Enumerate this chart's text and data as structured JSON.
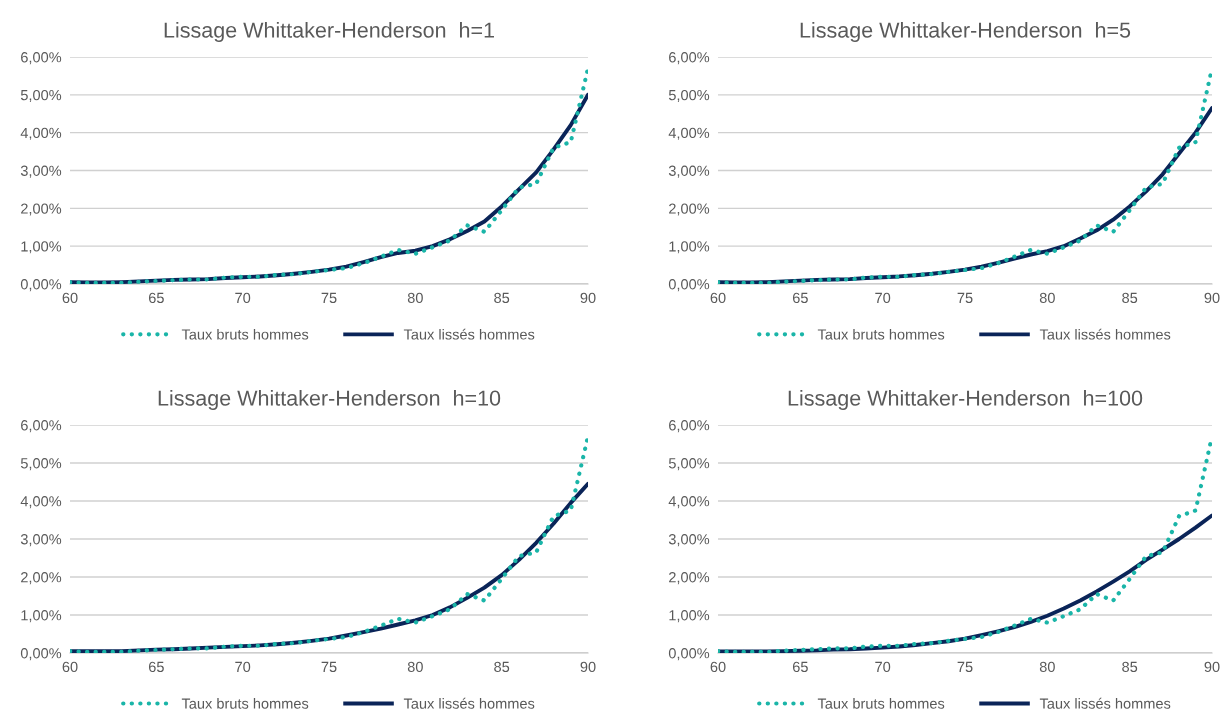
{
  "chart_data": [
    {
      "type": "line",
      "title": "Lissage Whittaker-Henderson  h=1",
      "x": [
        60,
        61,
        62,
        63,
        64,
        65,
        66,
        67,
        68,
        69,
        70,
        71,
        72,
        73,
        74,
        75,
        76,
        77,
        78,
        79,
        80,
        81,
        82,
        83,
        84,
        85,
        86,
        87,
        88,
        89,
        90
      ],
      "xlim": [
        60,
        90
      ],
      "xticks": [
        60,
        65,
        70,
        75,
        80,
        85,
        90
      ],
      "ylim": [
        0,
        6
      ],
      "yticks": [
        {
          "value": 0,
          "label": "0,00%"
        },
        {
          "value": 1,
          "label": "1,00%"
        },
        {
          "value": 2,
          "label": "2,00%"
        },
        {
          "value": 3,
          "label": "3,00%"
        },
        {
          "value": 4,
          "label": "4,00%"
        },
        {
          "value": 5,
          "label": "5,00%"
        },
        {
          "value": 6,
          "label": "6,00%"
        }
      ],
      "grid": "y",
      "legend": "bottom",
      "series": [
        {
          "name": "Taux bruts hommes",
          "color": "#1ab5a8",
          "line_style": "dotted",
          "values": [
            0.05,
            0.03,
            0.03,
            0.03,
            0.06,
            0.08,
            0.1,
            0.12,
            0.12,
            0.17,
            0.19,
            0.19,
            0.24,
            0.26,
            0.32,
            0.37,
            0.42,
            0.55,
            0.72,
            0.9,
            0.8,
            0.97,
            1.15,
            1.55,
            1.38,
            1.95,
            2.55,
            2.65,
            3.6,
            3.75,
            5.7
          ]
        },
        {
          "name": "Taux lissés hommes",
          "color": "#0a2458",
          "line_style": "solid",
          "values": [
            0.05,
            0.04,
            0.04,
            0.05,
            0.07,
            0.09,
            0.11,
            0.12,
            0.13,
            0.16,
            0.18,
            0.2,
            0.23,
            0.27,
            0.32,
            0.38,
            0.46,
            0.58,
            0.71,
            0.82,
            0.88,
            1.0,
            1.18,
            1.4,
            1.65,
            2.05,
            2.5,
            2.95,
            3.55,
            4.2,
            5.0
          ]
        }
      ]
    },
    {
      "type": "line",
      "title": "Lissage Whittaker-Henderson  h=5",
      "x": [
        60,
        61,
        62,
        63,
        64,
        65,
        66,
        67,
        68,
        69,
        70,
        71,
        72,
        73,
        74,
        75,
        76,
        77,
        78,
        79,
        80,
        81,
        82,
        83,
        84,
        85,
        86,
        87,
        88,
        89,
        90
      ],
      "xlim": [
        60,
        90
      ],
      "xticks": [
        60,
        65,
        70,
        75,
        80,
        85,
        90
      ],
      "ylim": [
        0,
        6
      ],
      "yticks": [
        {
          "value": 0,
          "label": "0,00%"
        },
        {
          "value": 1,
          "label": "1,00%"
        },
        {
          "value": 2,
          "label": "2,00%"
        },
        {
          "value": 3,
          "label": "3,00%"
        },
        {
          "value": 4,
          "label": "4,00%"
        },
        {
          "value": 5,
          "label": "5,00%"
        },
        {
          "value": 6,
          "label": "6,00%"
        }
      ],
      "grid": "y",
      "legend": "bottom",
      "series": [
        {
          "name": "Taux bruts hommes",
          "color": "#1ab5a8",
          "line_style": "dotted",
          "values": [
            0.05,
            0.03,
            0.03,
            0.03,
            0.06,
            0.08,
            0.1,
            0.12,
            0.12,
            0.17,
            0.19,
            0.19,
            0.24,
            0.26,
            0.32,
            0.37,
            0.42,
            0.55,
            0.72,
            0.9,
            0.8,
            0.97,
            1.15,
            1.55,
            1.38,
            1.95,
            2.55,
            2.65,
            3.6,
            3.75,
            5.7
          ]
        },
        {
          "name": "Taux lissés hommes",
          "color": "#0a2458",
          "line_style": "solid",
          "values": [
            0.05,
            0.04,
            0.04,
            0.05,
            0.07,
            0.09,
            0.11,
            0.12,
            0.13,
            0.16,
            0.18,
            0.2,
            0.23,
            0.27,
            0.32,
            0.38,
            0.46,
            0.56,
            0.67,
            0.78,
            0.87,
            1.0,
            1.2,
            1.42,
            1.7,
            2.05,
            2.45,
            2.9,
            3.45,
            4.0,
            4.65
          ]
        }
      ]
    },
    {
      "type": "line",
      "title": "Lissage Whittaker-Henderson  h=10",
      "x": [
        60,
        61,
        62,
        63,
        64,
        65,
        66,
        67,
        68,
        69,
        70,
        71,
        72,
        73,
        74,
        75,
        76,
        77,
        78,
        79,
        80,
        81,
        82,
        83,
        84,
        85,
        86,
        87,
        88,
        89,
        90
      ],
      "xlim": [
        60,
        90
      ],
      "xticks": [
        60,
        65,
        70,
        75,
        80,
        85,
        90
      ],
      "ylim": [
        0,
        6
      ],
      "yticks": [
        {
          "value": 0,
          "label": "0,00%"
        },
        {
          "value": 1,
          "label": "1,00%"
        },
        {
          "value": 2,
          "label": "2,00%"
        },
        {
          "value": 3,
          "label": "3,00%"
        },
        {
          "value": 4,
          "label": "4,00%"
        },
        {
          "value": 5,
          "label": "5,00%"
        },
        {
          "value": 6,
          "label": "6,00%"
        }
      ],
      "grid": "y",
      "legend": "bottom",
      "series": [
        {
          "name": "Taux bruts hommes",
          "color": "#1ab5a8",
          "line_style": "dotted",
          "values": [
            0.05,
            0.03,
            0.03,
            0.03,
            0.06,
            0.08,
            0.1,
            0.12,
            0.12,
            0.17,
            0.19,
            0.19,
            0.24,
            0.26,
            0.32,
            0.37,
            0.42,
            0.55,
            0.72,
            0.9,
            0.8,
            0.97,
            1.15,
            1.55,
            1.38,
            1.95,
            2.55,
            2.65,
            3.6,
            3.75,
            5.7
          ]
        },
        {
          "name": "Taux lissés hommes",
          "color": "#0a2458",
          "line_style": "solid",
          "values": [
            0.05,
            0.05,
            0.05,
            0.05,
            0.07,
            0.09,
            0.1,
            0.12,
            0.14,
            0.16,
            0.18,
            0.2,
            0.23,
            0.27,
            0.32,
            0.38,
            0.46,
            0.55,
            0.64,
            0.75,
            0.86,
            1.0,
            1.2,
            1.45,
            1.72,
            2.05,
            2.45,
            2.9,
            3.4,
            3.95,
            4.45
          ]
        }
      ]
    },
    {
      "type": "line",
      "title": "Lissage Whittaker-Henderson  h=100",
      "x": [
        60,
        61,
        62,
        63,
        64,
        65,
        66,
        67,
        68,
        69,
        70,
        71,
        72,
        73,
        74,
        75,
        76,
        77,
        78,
        79,
        80,
        81,
        82,
        83,
        84,
        85,
        86,
        87,
        88,
        89,
        90
      ],
      "xlim": [
        60,
        90
      ],
      "xticks": [
        60,
        65,
        70,
        75,
        80,
        85,
        90
      ],
      "ylim": [
        0,
        6
      ],
      "yticks": [
        {
          "value": 0,
          "label": "0,00%"
        },
        {
          "value": 1,
          "label": "1,00%"
        },
        {
          "value": 2,
          "label": "2,00%"
        },
        {
          "value": 3,
          "label": "3,00%"
        },
        {
          "value": 4,
          "label": "4,00%"
        },
        {
          "value": 5,
          "label": "5,00%"
        },
        {
          "value": 6,
          "label": "6,00%"
        }
      ],
      "grid": "y",
      "legend": "bottom",
      "series": [
        {
          "name": "Taux bruts hommes",
          "color": "#1ab5a8",
          "line_style": "dotted",
          "values": [
            0.05,
            0.03,
            0.03,
            0.03,
            0.06,
            0.08,
            0.1,
            0.12,
            0.12,
            0.17,
            0.19,
            0.19,
            0.24,
            0.26,
            0.32,
            0.37,
            0.42,
            0.55,
            0.72,
            0.9,
            0.8,
            0.97,
            1.15,
            1.55,
            1.38,
            1.95,
            2.55,
            2.65,
            3.6,
            3.75,
            5.7
          ]
        },
        {
          "name": "Taux lissés hommes",
          "color": "#0a2458",
          "line_style": "solid",
          "values": [
            0.04,
            0.04,
            0.04,
            0.04,
            0.05,
            0.06,
            0.07,
            0.09,
            0.1,
            0.12,
            0.14,
            0.17,
            0.21,
            0.26,
            0.31,
            0.38,
            0.47,
            0.57,
            0.68,
            0.82,
            0.98,
            1.17,
            1.38,
            1.62,
            1.88,
            2.15,
            2.45,
            2.72,
            3.0,
            3.3,
            3.62
          ]
        }
      ]
    }
  ]
}
